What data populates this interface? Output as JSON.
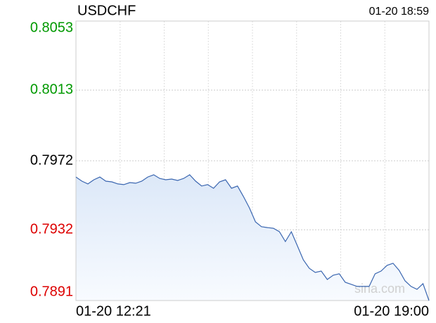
{
  "chart_data": {
    "type": "line",
    "title": "USDCHF",
    "subtitle": "01-20 18:59",
    "watermark": "sina.com",
    "x": [
      "01-20 12:21",
      null,
      null,
      null,
      null,
      null,
      null,
      null,
      null,
      null,
      null,
      null,
      null,
      null,
      null,
      null,
      null,
      null,
      null,
      null,
      null,
      null,
      null,
      null,
      null,
      null,
      null,
      null,
      null,
      null,
      null,
      null,
      null,
      null,
      null,
      null,
      null,
      null,
      null,
      null,
      null,
      null,
      null,
      null,
      null,
      null,
      null,
      null,
      null,
      null,
      null,
      null,
      null,
      null,
      null,
      null,
      null,
      null,
      null,
      "01-20 19:00"
    ],
    "series": [
      {
        "name": "USDCHF",
        "color": "#3a66b0",
        "values": [
          0.79626,
          0.79602,
          0.79586,
          0.7961,
          0.79626,
          0.79602,
          0.79598,
          0.79586,
          0.79582,
          0.79594,
          0.7959,
          0.79602,
          0.79626,
          0.79639,
          0.79618,
          0.7961,
          0.79614,
          0.79606,
          0.79618,
          0.79639,
          0.79602,
          0.79574,
          0.79582,
          0.79561,
          0.79598,
          0.7961,
          0.79561,
          0.79574,
          0.79513,
          0.79447,
          0.79366,
          0.79338,
          0.79333,
          0.79329,
          0.79309,
          0.79252,
          0.79309,
          0.79228,
          0.79146,
          0.79097,
          0.79073,
          0.79081,
          0.79032,
          0.79057,
          0.79065,
          0.79016,
          0.79004,
          0.78992,
          0.78992,
          0.78992,
          0.79065,
          0.79081,
          0.79114,
          0.79126,
          0.79085,
          0.79024,
          0.78992,
          0.78975,
          0.79008,
          0.7891
        ]
      }
    ],
    "ylim": [
      0.7891,
      0.8053
    ],
    "yticks": [
      0.8053,
      0.8013,
      0.7972,
      0.7932,
      0.7891
    ],
    "ytick_colors": [
      "#009900",
      "#009900",
      "#000000",
      "#dd0000",
      "#dd0000"
    ],
    "grid": true
  }
}
